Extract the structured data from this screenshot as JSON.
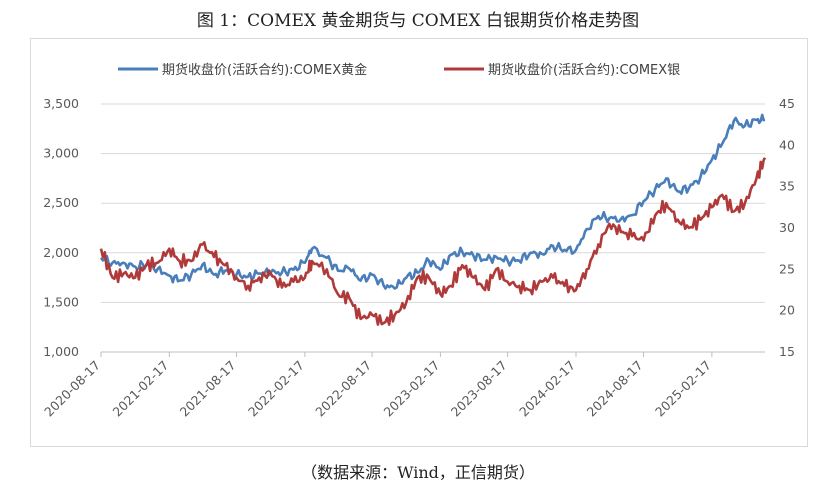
{
  "title": "图 1：COMEX 黄金期货与 COMEX 白银期货价格走势图",
  "source": "（数据来源：Wind，正信期货）",
  "chart_data": {
    "type": "line",
    "title": "图 1：COMEX 黄金期货与 COMEX 白银期货价格走势图",
    "legend_position": "top",
    "grid": "horizontal",
    "x_tick_labels": [
      "2020-08-17",
      "2021-02-17",
      "2021-08-17",
      "2022-02-17",
      "2022-08-17",
      "2023-02-17",
      "2023-08-17",
      "2024-02-17",
      "2024-08-17",
      "2025-02-17"
    ],
    "y_left": {
      "ylim": [
        1000,
        3500
      ],
      "ticks": [
        "1,000",
        "1,500",
        "2,000",
        "2,500",
        "3,000",
        "3,500"
      ]
    },
    "y_right": {
      "ylim": [
        15,
        45
      ],
      "ticks": [
        "15",
        "20",
        "25",
        "30",
        "35",
        "40",
        "45"
      ]
    },
    "x_range": [
      "2020-08-17",
      "2025-07-10"
    ],
    "series": [
      {
        "name": "期货收盘价(活跃合约):COMEX黄金",
        "axis": "left",
        "color": "#4a7ebb",
        "x": [
          "2020-08-17",
          "2020-09-17",
          "2020-10-17",
          "2020-11-17",
          "2020-12-17",
          "2021-01-17",
          "2021-02-17",
          "2021-03-17",
          "2021-04-17",
          "2021-05-17",
          "2021-06-17",
          "2021-07-17",
          "2021-08-17",
          "2021-09-17",
          "2021-10-17",
          "2021-11-17",
          "2021-12-17",
          "2022-01-17",
          "2022-02-17",
          "2022-03-08",
          "2022-04-17",
          "2022-05-17",
          "2022-06-17",
          "2022-07-17",
          "2022-08-17",
          "2022-09-17",
          "2022-10-17",
          "2022-11-17",
          "2022-12-17",
          "2023-01-17",
          "2023-02-17",
          "2023-03-17",
          "2023-04-17",
          "2023-05-17",
          "2023-06-17",
          "2023-07-17",
          "2023-08-17",
          "2023-09-17",
          "2023-10-17",
          "2023-11-17",
          "2023-12-17",
          "2024-01-17",
          "2024-02-17",
          "2024-03-17",
          "2024-04-17",
          "2024-05-17",
          "2024-06-17",
          "2024-07-17",
          "2024-08-17",
          "2024-09-17",
          "2024-10-17",
          "2024-11-17",
          "2024-12-17",
          "2025-01-17",
          "2025-02-17",
          "2025-03-17",
          "2025-04-17",
          "2025-05-17",
          "2025-06-17",
          "2025-07-10"
        ],
        "values": [
          1950,
          1900,
          1900,
          1860,
          1880,
          1840,
          1770,
          1720,
          1780,
          1880,
          1780,
          1820,
          1780,
          1760,
          1790,
          1800,
          1800,
          1830,
          1900,
          2040,
          1950,
          1820,
          1840,
          1720,
          1780,
          1670,
          1640,
          1750,
          1800,
          1920,
          1830,
          1980,
          2010,
          1970,
          1930,
          1960,
          1920,
          1920,
          2000,
          1990,
          2070,
          2030,
          2030,
          2240,
          2370,
          2350,
          2340,
          2380,
          2520,
          2640,
          2750,
          2620,
          2650,
          2760,
          2940,
          3100,
          3330,
          3280,
          3340,
          3340
        ]
      },
      {
        "name": "期货收盘价(活跃合约):COMEX银",
        "axis": "right",
        "color": "#b03a3a",
        "x": [
          "2020-08-17",
          "2020-09-17",
          "2020-10-17",
          "2020-11-17",
          "2020-12-17",
          "2021-01-17",
          "2021-02-17",
          "2021-03-17",
          "2021-04-17",
          "2021-05-17",
          "2021-06-17",
          "2021-07-17",
          "2021-08-17",
          "2021-09-17",
          "2021-10-17",
          "2021-11-17",
          "2021-12-17",
          "2022-01-17",
          "2022-02-17",
          "2022-03-08",
          "2022-04-17",
          "2022-05-17",
          "2022-06-17",
          "2022-07-17",
          "2022-08-17",
          "2022-09-17",
          "2022-10-17",
          "2022-11-17",
          "2022-12-17",
          "2023-01-17",
          "2023-02-17",
          "2023-03-17",
          "2023-04-17",
          "2023-05-17",
          "2023-06-17",
          "2023-07-17",
          "2023-08-17",
          "2023-09-17",
          "2023-10-17",
          "2023-11-17",
          "2023-12-17",
          "2024-01-17",
          "2024-02-17",
          "2024-03-17",
          "2024-04-17",
          "2024-05-17",
          "2024-06-17",
          "2024-07-17",
          "2024-08-17",
          "2024-09-17",
          "2024-10-17",
          "2024-11-17",
          "2024-12-17",
          "2025-01-17",
          "2025-02-17",
          "2025-03-17",
          "2025-04-17",
          "2025-05-17",
          "2025-06-17",
          "2025-07-10"
        ],
        "values": [
          27.5,
          24.0,
          24.5,
          24.0,
          25.5,
          25.8,
          27.5,
          26.0,
          26.0,
          28.0,
          26.5,
          25.5,
          24.0,
          23.0,
          24.0,
          24.5,
          22.8,
          23.5,
          24.0,
          26.0,
          25.0,
          22.0,
          21.5,
          19.0,
          19.5,
          18.5,
          19.5,
          21.0,
          24.0,
          24.0,
          22.0,
          23.0,
          25.5,
          24.0,
          22.5,
          25.0,
          23.5,
          23.0,
          22.5,
          23.5,
          24.0,
          23.0,
          22.5,
          25.0,
          28.0,
          30.5,
          29.5,
          29.0,
          28.5,
          31.5,
          33.0,
          31.0,
          30.0,
          31.0,
          32.5,
          34.0,
          32.0,
          33.0,
          36.0,
          38.5
        ]
      }
    ]
  }
}
